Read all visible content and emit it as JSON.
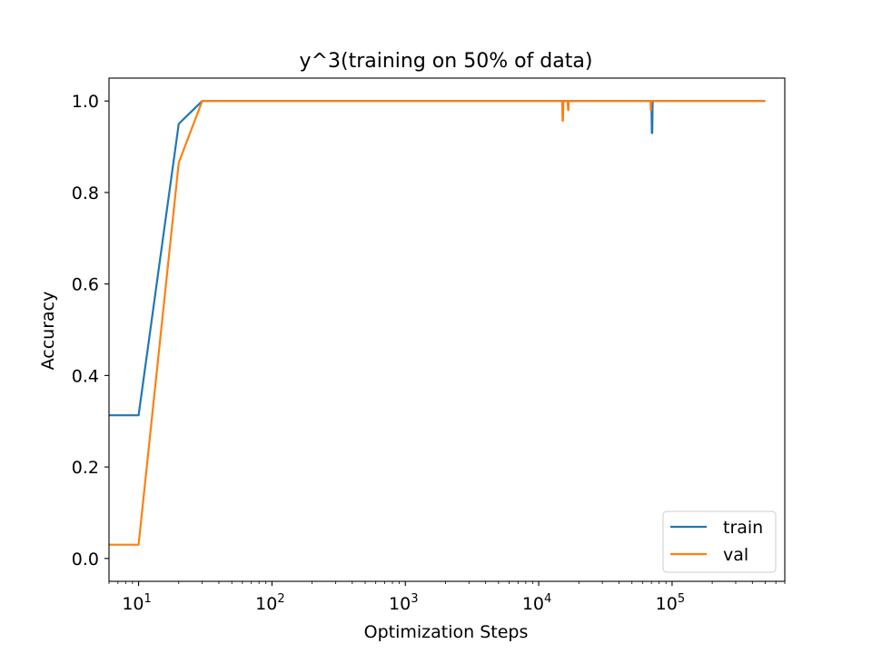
{
  "chart_data": {
    "type": "line",
    "title": "y^3(training on 50% of data)",
    "xlabel": "Optimization Steps",
    "ylabel": "Accuracy",
    "xscale": "log",
    "xlim": [
      6,
      700000
    ],
    "ylim": [
      -0.05,
      1.05
    ],
    "yticks": [
      0.0,
      0.2,
      0.4,
      0.6,
      0.8,
      1.0
    ],
    "ytick_labels": [
      "0.0",
      "0.2",
      "0.4",
      "0.6",
      "0.8",
      "1.0"
    ],
    "xticks": [
      10,
      100,
      1000,
      10000,
      100000
    ],
    "xtick_labels": [
      {
        "base": "10",
        "exp": "1"
      },
      {
        "base": "10",
        "exp": "2"
      },
      {
        "base": "10",
        "exp": "3"
      },
      {
        "base": "10",
        "exp": "4"
      },
      {
        "base": "10",
        "exp": "5"
      }
    ],
    "grid": false,
    "legend_position": "lower right",
    "series": [
      {
        "name": "train",
        "color": "#1f77b4",
        "x": [
          6,
          10,
          20,
          30,
          100,
          1000,
          10000,
          70000,
          70500,
          71000,
          71500,
          72000,
          100000,
          500000
        ],
        "y": [
          0.313,
          0.313,
          0.95,
          1.0,
          1.0,
          1.0,
          1.0,
          1.0,
          0.93,
          0.93,
          1.0,
          1.0,
          1.0,
          1.0
        ]
      },
      {
        "name": "val",
        "color": "#ff7f0e",
        "x": [
          6,
          10,
          20,
          30,
          100,
          1000,
          10000,
          15000,
          15100,
          15200,
          15300,
          16500,
          16600,
          16700,
          16800,
          50000,
          69000,
          69200,
          69400,
          69600,
          100000,
          500000
        ],
        "y": [
          0.03,
          0.03,
          0.865,
          1.0,
          1.0,
          1.0,
          1.0,
          1.0,
          0.957,
          0.957,
          1.0,
          1.0,
          0.98,
          0.98,
          1.0,
          1.0,
          1.0,
          0.98,
          0.98,
          1.0,
          1.0,
          1.0
        ]
      }
    ]
  }
}
